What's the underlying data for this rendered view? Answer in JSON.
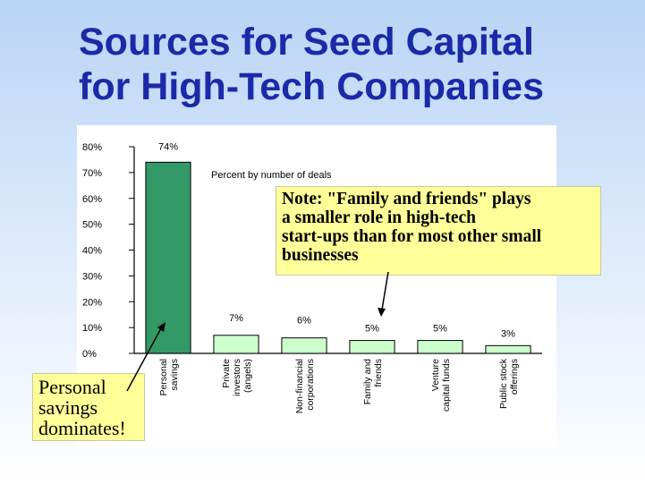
{
  "slide": {
    "title_line1": "Sources for Seed Capital",
    "title_line2": "for High-Tech Companies"
  },
  "note": {
    "lines": [
      "Note:  \"Family and friends\" plays",
      "a smaller role in high-tech",
      "start-ups than for most other small",
      "businesses"
    ],
    "background": "#ffff99"
  },
  "callout": {
    "lines": [
      "Personal",
      "savings",
      "dominates!"
    ],
    "background": "#ffff99"
  },
  "colors": {
    "title": "#1a2aa8",
    "personal_savings_bar": "#339966",
    "other_bars": "#ccffcc",
    "bar_outline": "#000000"
  },
  "chart_data": {
    "type": "bar",
    "subtitle": "Percent by number of deals",
    "categories": [
      [
        "Personal",
        "savings"
      ],
      [
        "Private",
        "investors",
        "(angels)"
      ],
      [
        "Non-financial",
        "corporations"
      ],
      [
        "Family and",
        "friends"
      ],
      [
        "Venture",
        "capital funds"
      ],
      [
        "Public stock",
        "offerings"
      ]
    ],
    "values": [
      74,
      7,
      6,
      5,
      5,
      3
    ],
    "value_labels": [
      "74%",
      "7%",
      "6%",
      "5%",
      "5%",
      "3%"
    ],
    "y_ticks": [
      "0%",
      "10%",
      "20%",
      "30%",
      "40%",
      "50%",
      "60%",
      "70%",
      "80%"
    ],
    "ylim": [
      0,
      80
    ],
    "grid": false,
    "legend": "none"
  }
}
